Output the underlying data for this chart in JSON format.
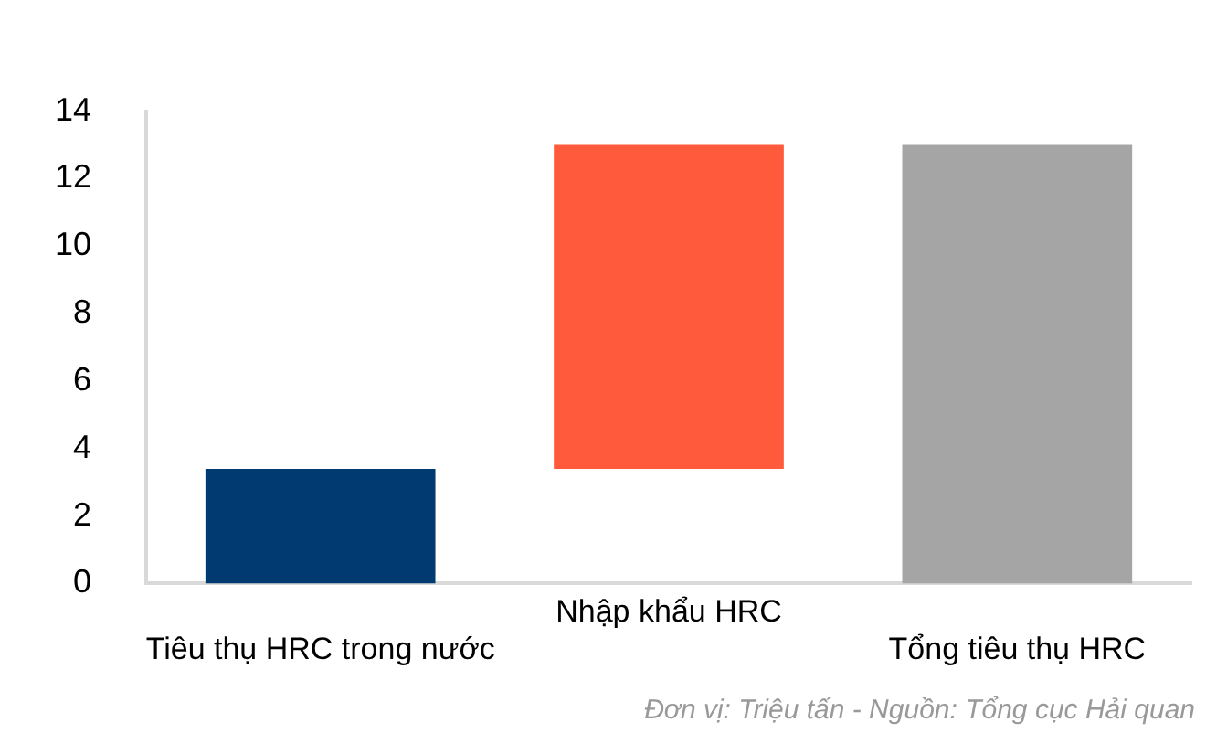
{
  "chart_data": {
    "type": "bar",
    "categories": [
      "Tiêu thụ HRC trong nước",
      "Nhập khẩu HRC",
      "Tổng tiêu thụ HRC"
    ],
    "values": [
      3.4,
      9.6,
      13.0
    ],
    "base": [
      0,
      3.4,
      0
    ],
    "colors": [
      "#003a70",
      "#ff5a3c",
      "#a5a5a5"
    ],
    "ylim": [
      0,
      14
    ],
    "yticks": [
      0,
      2,
      4,
      6,
      8,
      10,
      12,
      14
    ],
    "grid": false,
    "legend": false,
    "annotations": [
      "Đơn vị: Triệu tấn - Nguồn: Tổng cục Hải quan"
    ]
  }
}
